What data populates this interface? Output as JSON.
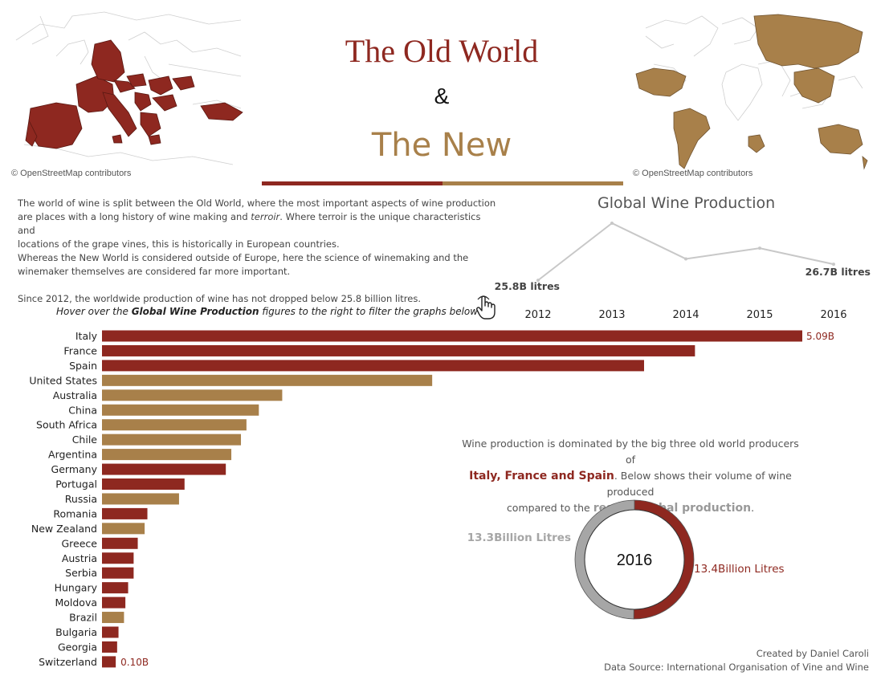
{
  "header": {
    "title_old": "The Old World",
    "title_amp": "&",
    "title_new": "The New"
  },
  "maps": {
    "left_credit": "© OpenStreetMap contributors",
    "right_credit": "© OpenStreetMap contributors"
  },
  "intro": {
    "line1": "The world of wine is split between the Old World, where the most important aspects of wine production",
    "line2a": "are places with a long history of wine making and ",
    "line2b": "terroir",
    "line2c": ". Where terroir is the unique characteristics and",
    "line3": "locations of the grape vines, this is historically in European countries.",
    "line4": "Whereas the New World is considered outside of Europe, here the science of winemaking and the",
    "line5": "winemaker themselves are considered far more important.",
    "line6": "Since 2012, the worldwide production of wine has not dropped below 25.8 billion litres."
  },
  "hover_note": {
    "prefix": "Hover over the ",
    "bold": "Global Wine Production",
    "suffix": " figures to the right to filter the graphs below"
  },
  "colors": {
    "old_world": "#8e2820",
    "new_world": "#a8804a",
    "rest": "#a6a6a6",
    "line": "#c8c8c8"
  },
  "chart_data": [
    {
      "type": "line",
      "title": "Global Wine Production",
      "x": [
        "2012",
        "2013",
        "2014",
        "2015",
        "2016"
      ],
      "values": [
        25.8,
        29.0,
        27.0,
        27.6,
        26.7
      ],
      "unit": "B litres",
      "labels": {
        "first": "25.8B litres",
        "last": "26.7B litres"
      }
    },
    {
      "type": "bar",
      "orientation": "horizontal",
      "categories": [
        "Italy",
        "France",
        "Spain",
        "United States",
        "Australia",
        "China",
        "South Africa",
        "Chile",
        "Argentina",
        "Germany",
        "Portugal",
        "Russia",
        "Romania",
        "New Zealand",
        "Greece",
        "Austria",
        "Serbia",
        "Hungary",
        "Moldova",
        "Brazil",
        "Bulgaria",
        "Georgia",
        "Switzerland"
      ],
      "values": [
        5.09,
        4.31,
        3.94,
        2.4,
        1.31,
        1.14,
        1.05,
        1.01,
        0.94,
        0.9,
        0.6,
        0.56,
        0.33,
        0.31,
        0.26,
        0.23,
        0.23,
        0.19,
        0.17,
        0.16,
        0.12,
        0.11,
        0.1
      ],
      "group": [
        "old",
        "old",
        "old",
        "new",
        "new",
        "new",
        "new",
        "new",
        "new",
        "old",
        "old",
        "new",
        "old",
        "new",
        "old",
        "old",
        "old",
        "old",
        "old",
        "new",
        "old",
        "old",
        "old"
      ],
      "unit": "B",
      "data_labels": {
        "max": "5.09B",
        "min": "0.10B"
      }
    },
    {
      "type": "pie",
      "center_label": "2016",
      "slices": [
        {
          "name": "Italy, France and Spain",
          "value": 13.4,
          "label": "13.4Billion Litres"
        },
        {
          "name": "rest of global production",
          "value": 13.3,
          "label": "13.3Billion Litres"
        }
      ]
    }
  ],
  "donut_text": {
    "line1": "Wine production is dominated by the big three old world producers of",
    "line2_bold": "Italy, France and Spain",
    "line2_rest": ". Below shows their volume of wine produced",
    "line3_pre": "compared to the ",
    "line3_bold": "rest of global production",
    "line3_end": "."
  },
  "footer": {
    "created_by": "Created by Daniel Caroli",
    "source": "Data Source: International Organisation of Vine and Wine"
  }
}
